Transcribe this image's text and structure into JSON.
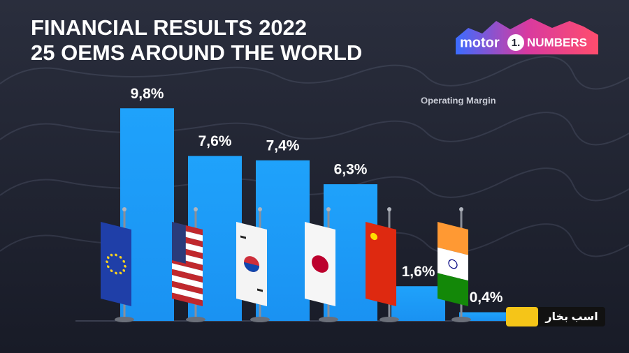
{
  "chart_data": {
    "type": "bar",
    "title": [
      "FINANCIAL RESULTS 2022",
      "25 OEMS AROUND THE WORLD"
    ],
    "logo": [
      "motor",
      "1.",
      "NUMBERS"
    ],
    "series_label": "Operating Margin",
    "categories": [
      null,
      null,
      null,
      null,
      null,
      null
    ],
    "values": [
      9.8,
      7.6,
      7.4,
      6.3,
      1.6,
      0.4
    ],
    "value_labels": [
      "9,8%",
      "7,6%",
      "7,4%",
      "6,3%",
      "1,6%",
      "0,4%"
    ],
    "color": "#1fa2fb",
    "watermark": "اسب بخار"
  }
}
